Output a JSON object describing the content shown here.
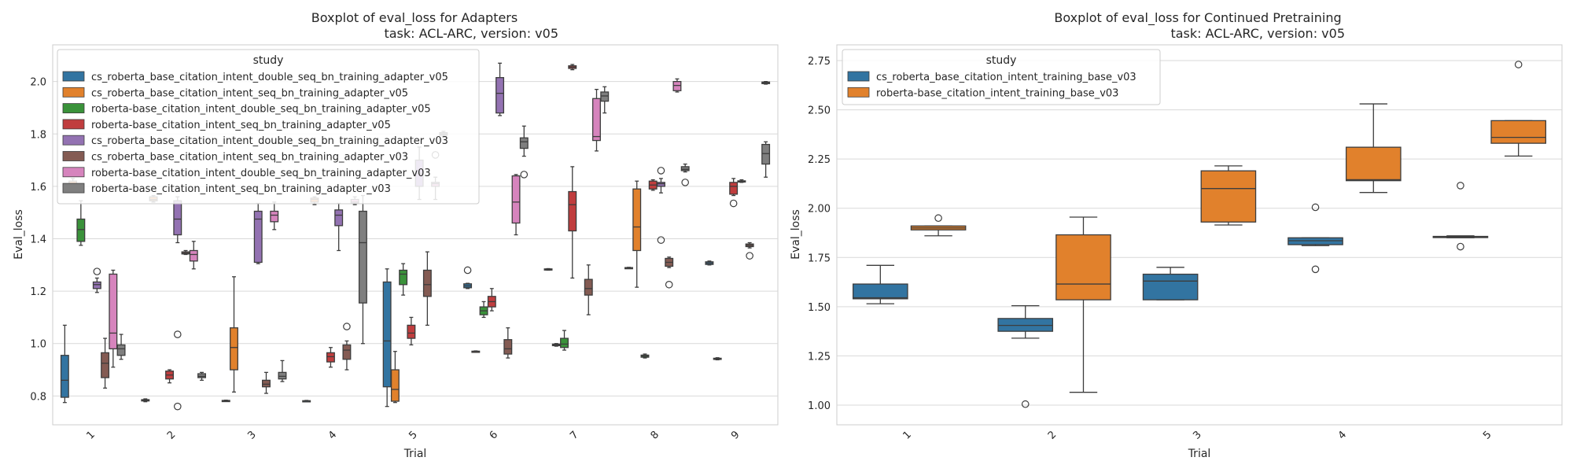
{
  "chart_data": [
    {
      "type": "boxplot",
      "title": "Boxplot of eval_loss for Adapters",
      "subtitle": "task: ACL-ARC, version: v05",
      "xlabel": "Trial",
      "ylabel": "Eval_loss",
      "ylim": [
        0.69,
        2.14
      ],
      "yticks": [
        "0.8",
        "1.0",
        "1.2",
        "1.4",
        "1.6",
        "1.8",
        "2.0"
      ],
      "categories": [
        "1",
        "2",
        "3",
        "4",
        "5",
        "6",
        "7",
        "8",
        "9"
      ],
      "grid": true,
      "legend": {
        "title": "study",
        "placement": "upper-left"
      },
      "series": [
        {
          "name": "cs_roberta_base_citation_intent_double_seq_bn_training_adapter_v05",
          "color": "#3274a1",
          "boxes": [
            {
              "cat": 0,
              "min": 0.775,
              "q1": 0.795,
              "med": 0.86,
              "q3": 0.955,
              "max": 1.07
            },
            {
              "cat": 1,
              "min": 0.778,
              "q1": 0.781,
              "med": 0.783,
              "q3": 0.786,
              "max": 0.789
            },
            {
              "cat": 2,
              "min": 0.78,
              "q1": 0.781,
              "med": 0.782,
              "q3": 0.783,
              "max": 0.784
            },
            {
              "cat": 3,
              "min": 0.779,
              "q1": 0.78,
              "med": 0.781,
              "q3": 0.782,
              "max": 0.783
            },
            {
              "cat": 4,
              "min": 0.76,
              "q1": 0.835,
              "med": 1.01,
              "q3": 1.235,
              "max": 1.285
            },
            {
              "cat": 5,
              "min": 1.21,
              "q1": 1.213,
              "med": 1.22,
              "q3": 1.228,
              "max": 1.23,
              "outliers": [
                1.28
              ]
            },
            {
              "cat": 6,
              "min": 1.28,
              "q1": 1.281,
              "med": 1.283,
              "q3": 1.285,
              "max": 1.286
            },
            {
              "cat": 7,
              "min": 1.287,
              "q1": 1.288,
              "med": 1.289,
              "q3": 1.29,
              "max": 1.291
            },
            {
              "cat": 8,
              "min": 1.3,
              "q1": 1.302,
              "med": 1.307,
              "q3": 1.312,
              "max": 1.315
            }
          ]
        },
        {
          "name": "cs_roberta_base_citation_intent_seq_bn_training_adapter_v05",
          "color": "#e1812c",
          "boxes": [
            {
              "cat": 0,
              "min": 1.59,
              "q1": 1.6,
              "med": 1.61,
              "q3": 1.62,
              "max": 1.63
            },
            {
              "cat": 1,
              "min": 1.54,
              "q1": 1.545,
              "med": 1.55,
              "q3": 1.56,
              "max": 1.565
            },
            {
              "cat": 2,
              "min": 0.815,
              "q1": 0.9,
              "med": 0.985,
              "q3": 1.06,
              "max": 1.255
            },
            {
              "cat": 3,
              "min": 1.53,
              "q1": 1.54,
              "med": 1.55,
              "q3": 1.555,
              "max": 1.56
            },
            {
              "cat": 4,
              "min": 0.775,
              "q1": 0.78,
              "med": 0.825,
              "q3": 0.9,
              "max": 0.97
            },
            {
              "cat": 5,
              "min": 0.968,
              "q1": 0.969,
              "med": 0.97,
              "q3": 0.971,
              "max": 0.972
            },
            {
              "cat": 6,
              "min": 0.99,
              "q1": 0.992,
              "med": 0.995,
              "q3": 0.998,
              "max": 1.0
            },
            {
              "cat": 7,
              "min": 1.215,
              "q1": 1.355,
              "med": 1.445,
              "q3": 1.59,
              "max": 1.62
            },
            {
              "cat": 8,
              "min": 0.938,
              "q1": 0.94,
              "med": 0.942,
              "q3": 0.944,
              "max": 0.946
            }
          ]
        },
        {
          "name": "roberta-base_citation_intent_double_seq_bn_training_adapter_v05",
          "color": "#3a923a",
          "boxes": [
            {
              "cat": 0,
              "min": 1.375,
              "q1": 1.39,
              "med": 1.435,
              "q3": 1.475,
              "max": 1.545
            },
            {
              "cat": 4,
              "min": 1.185,
              "q1": 1.225,
              "med": 1.265,
              "q3": 1.28,
              "max": 1.305
            },
            {
              "cat": 5,
              "min": 1.1,
              "q1": 1.11,
              "med": 1.125,
              "q3": 1.14,
              "max": 1.16
            },
            {
              "cat": 6,
              "min": 0.975,
              "q1": 0.985,
              "med": 0.998,
              "q3": 1.02,
              "max": 1.05
            },
            {
              "cat": 7,
              "min": 0.945,
              "q1": 0.948,
              "med": 0.952,
              "q3": 0.956,
              "max": 0.96
            }
          ]
        },
        {
          "name": "roberta-base_citation_intent_seq_bn_training_adapter_v05",
          "color": "#c03d3e",
          "boxes": [
            {
              "cat": 1,
              "min": 0.85,
              "q1": 0.865,
              "med": 0.88,
              "q3": 0.895,
              "max": 0.9
            },
            {
              "cat": 3,
              "min": 0.91,
              "q1": 0.93,
              "med": 0.95,
              "q3": 0.965,
              "max": 0.985
            },
            {
              "cat": 4,
              "min": 0.995,
              "q1": 1.02,
              "med": 1.04,
              "q3": 1.07,
              "max": 1.1
            },
            {
              "cat": 5,
              "min": 1.125,
              "q1": 1.14,
              "med": 1.16,
              "q3": 1.18,
              "max": 1.21
            },
            {
              "cat": 6,
              "min": 1.25,
              "q1": 1.43,
              "med": 1.53,
              "q3": 1.58,
              "max": 1.675
            },
            {
              "cat": 7,
              "min": 1.585,
              "q1": 1.59,
              "med": 1.605,
              "q3": 1.62,
              "max": 1.625
            },
            {
              "cat": 8,
              "min": 1.565,
              "q1": 1.57,
              "med": 1.6,
              "q3": 1.615,
              "max": 1.63,
              "outliers": [
                1.535
              ]
            }
          ]
        },
        {
          "name": "cs_roberta_base_citation_intent_double_seq_bn_training_adapter_v03",
          "color": "#9372b2",
          "boxes": [
            {
              "cat": 0,
              "min": 1.195,
              "q1": 1.21,
              "med": 1.225,
              "q3": 1.235,
              "max": 1.25,
              "outliers": [
                1.275
              ]
            },
            {
              "cat": 1,
              "min": 1.385,
              "q1": 1.415,
              "med": 1.475,
              "q3": 1.545,
              "max": 1.56
            },
            {
              "cat": 2,
              "min": 1.305,
              "q1": 1.31,
              "med": 1.475,
              "q3": 1.505,
              "max": 1.535
            },
            {
              "cat": 3,
              "min": 1.355,
              "q1": 1.45,
              "med": 1.49,
              "q3": 1.51,
              "max": 1.535
            },
            {
              "cat": 4,
              "min": 1.55,
              "q1": 1.6,
              "med": 1.65,
              "q3": 1.7,
              "max": 1.75
            },
            {
              "cat": 5,
              "min": 1.87,
              "q1": 1.88,
              "med": 1.955,
              "q3": 2.015,
              "max": 2.07
            },
            {
              "cat": 7,
              "min": 1.575,
              "q1": 1.6,
              "med": 1.61,
              "q3": 1.615,
              "max": 1.63,
              "outliers": [
                1.66,
                1.395
              ]
            },
            {
              "cat": 8,
              "min": 1.615,
              "q1": 1.617,
              "med": 1.619,
              "q3": 1.621,
              "max": 1.625
            }
          ]
        },
        {
          "name": "cs_roberta_base_citation_intent_seq_bn_training_adapter_v03",
          "color": "#845b53",
          "boxes": [
            {
              "cat": 0,
              "min": 0.83,
              "q1": 0.87,
              "med": 0.925,
              "q3": 0.965,
              "max": 1.02
            },
            {
              "cat": 1,
              "min": 1.34,
              "q1": 1.342,
              "med": 1.345,
              "q3": 1.35,
              "max": 1.355
            },
            {
              "cat": 2,
              "min": 0.81,
              "q1": 0.835,
              "med": 0.845,
              "q3": 0.86,
              "max": 0.89
            },
            {
              "cat": 3,
              "min": 0.9,
              "q1": 0.94,
              "med": 0.975,
              "q3": 0.995,
              "max": 1.01,
              "outliers": [
                1.065
              ]
            },
            {
              "cat": 4,
              "min": 1.07,
              "q1": 1.18,
              "med": 1.225,
              "q3": 1.28,
              "max": 1.35
            },
            {
              "cat": 5,
              "min": 0.945,
              "q1": 0.96,
              "med": 0.98,
              "q3": 1.015,
              "max": 1.06
            },
            {
              "cat": 6,
              "min": 1.11,
              "q1": 1.185,
              "med": 1.21,
              "q3": 1.245,
              "max": 1.3
            },
            {
              "cat": 7,
              "min": 1.29,
              "q1": 1.295,
              "med": 1.31,
              "q3": 1.325,
              "max": 1.33,
              "outliers": [
                1.225
              ]
            },
            {
              "cat": 8,
              "min": 1.365,
              "q1": 1.37,
              "med": 1.375,
              "q3": 1.38,
              "max": 1.385,
              "outliers": [
                1.335
              ]
            }
          ]
        },
        {
          "name": "roberta-base_citation_intent_double_seq_bn_training_adapter_v03",
          "color": "#d684bd",
          "boxes": [
            {
              "cat": 0,
              "min": 0.91,
              "q1": 0.98,
              "med": 1.04,
              "q3": 1.265,
              "max": 1.28
            },
            {
              "cat": 1,
              "min": 1.285,
              "q1": 1.315,
              "med": 1.34,
              "q3": 1.355,
              "max": 1.39
            },
            {
              "cat": 2,
              "min": 1.435,
              "q1": 1.465,
              "med": 1.49,
              "q3": 1.505,
              "max": 1.54
            },
            {
              "cat": 3,
              "min": 1.53,
              "q1": 1.535,
              "med": 1.54,
              "q3": 1.55,
              "max": 1.56
            },
            {
              "cat": 4,
              "min": 1.55,
              "q1": 1.6,
              "med": 1.61,
              "q3": 1.615,
              "max": 1.635,
              "outliers": [
                1.72
              ]
            },
            {
              "cat": 5,
              "min": 1.415,
              "q1": 1.46,
              "med": 1.54,
              "q3": 1.64,
              "max": 1.645
            },
            {
              "cat": 6,
              "min": 1.735,
              "q1": 1.775,
              "med": 1.79,
              "q3": 1.935,
              "max": 1.97
            },
            {
              "cat": 7,
              "min": 1.96,
              "q1": 1.965,
              "med": 1.985,
              "q3": 2.0,
              "max": 2.01
            }
          ]
        },
        {
          "name": "roberta-base_citation_intent_seq_bn_training_adapter_v03",
          "color": "#7f7f7f",
          "boxes": [
            {
              "cat": 0,
              "min": 0.94,
              "q1": 0.955,
              "med": 0.98,
              "q3": 0.995,
              "max": 1.035
            },
            {
              "cat": 1,
              "min": 0.86,
              "q1": 0.87,
              "med": 0.875,
              "q3": 0.885,
              "max": 0.89
            },
            {
              "cat": 2,
              "min": 0.855,
              "q1": 0.865,
              "med": 0.875,
              "q3": 0.89,
              "max": 0.935
            },
            {
              "cat": 3,
              "min": 1.0,
              "q1": 1.155,
              "med": 1.385,
              "q3": 1.505,
              "max": 1.565
            },
            {
              "cat": 4,
              "min": 1.79,
              "q1": 1.795,
              "med": 1.8,
              "q3": 1.805,
              "max": 1.81
            },
            {
              "cat": 5,
              "min": 1.715,
              "q1": 1.745,
              "med": 1.77,
              "q3": 1.785,
              "max": 1.83,
              "outliers": [
                1.645
              ]
            },
            {
              "cat": 6,
              "min": 1.88,
              "q1": 1.925,
              "med": 1.945,
              "q3": 1.96,
              "max": 1.98
            },
            {
              "cat": 7,
              "min": 1.655,
              "q1": 1.66,
              "med": 1.665,
              "q3": 1.675,
              "max": 1.685,
              "outliers": [
                1.615
              ]
            },
            {
              "cat": 8,
              "min": 1.635,
              "q1": 1.685,
              "med": 1.725,
              "q3": 1.76,
              "max": 1.77
            }
          ]
        }
      ],
      "extra_boxes": [
        {
          "cat": 6,
          "slot": 3,
          "min": 2.045,
          "q1": 2.05,
          "med": 2.055,
          "q3": 2.06,
          "max": 2.065
        },
        {
          "cat": 8,
          "slot": 7,
          "min": 1.99,
          "q1": 1.992,
          "med": 1.995,
          "q3": 1.998,
          "max": 2.0
        }
      ],
      "extra_outliers": [
        {
          "cat": 1,
          "slot": 4,
          "y": 1.035
        },
        {
          "cat": 1,
          "slot": 4,
          "y": 0.76
        }
      ]
    },
    {
      "type": "boxplot",
      "title": "Boxplot of eval_loss for Continued Pretraining",
      "subtitle": "task: ACL-ARC, version: v05",
      "xlabel": "Trial",
      "ylabel": "Eval_loss",
      "ylim": [
        0.9,
        2.83
      ],
      "yticks": [
        "1.00",
        "1.25",
        "1.50",
        "1.75",
        "2.00",
        "2.25",
        "2.50",
        "2.75"
      ],
      "categories": [
        "1",
        "2",
        "3",
        "4",
        "5"
      ],
      "grid": true,
      "legend": {
        "title": "study",
        "placement": "upper-left"
      },
      "series": [
        {
          "name": "cs_roberta_base_citation_intent_training_base_v03",
          "color": "#3274a1",
          "boxes": [
            {
              "cat": 0,
              "min": 1.515,
              "q1": 1.54,
              "med": 1.545,
              "q3": 1.615,
              "max": 1.71
            },
            {
              "cat": 1,
              "min": 1.34,
              "q1": 1.375,
              "med": 1.405,
              "q3": 1.44,
              "max": 1.505,
              "outliers": [
                1.005
              ]
            },
            {
              "cat": 2,
              "min": 1.535,
              "q1": 1.535,
              "med": 1.63,
              "q3": 1.665,
              "max": 1.7
            },
            {
              "cat": 3,
              "min": 1.81,
              "q1": 1.815,
              "med": 1.835,
              "q3": 1.85,
              "max": 1.85,
              "outliers": [
                2.005,
                1.69
              ]
            },
            {
              "cat": 4,
              "min": 1.85,
              "q1": 1.852,
              "med": 1.855,
              "q3": 1.857,
              "max": 1.86,
              "outliers": [
                2.115,
                1.805
              ]
            }
          ]
        },
        {
          "name": "roberta-base_citation_intent_training_base_v03",
          "color": "#e1812c",
          "boxes": [
            {
              "cat": 0,
              "min": 1.86,
              "q1": 1.89,
              "med": 1.9,
              "q3": 1.91,
              "max": 1.91,
              "outliers": [
                1.95
              ]
            },
            {
              "cat": 1,
              "min": 1.065,
              "q1": 1.535,
              "med": 1.615,
              "q3": 1.865,
              "max": 1.955
            },
            {
              "cat": 2,
              "min": 1.915,
              "q1": 1.93,
              "med": 2.1,
              "q3": 2.19,
              "max": 2.215
            },
            {
              "cat": 3,
              "min": 2.08,
              "q1": 2.14,
              "med": 2.145,
              "q3": 2.31,
              "max": 2.53
            },
            {
              "cat": 4,
              "min": 2.265,
              "q1": 2.33,
              "med": 2.36,
              "q3": 2.445,
              "max": 2.445,
              "outliers": [
                2.73
              ]
            }
          ]
        }
      ]
    }
  ]
}
